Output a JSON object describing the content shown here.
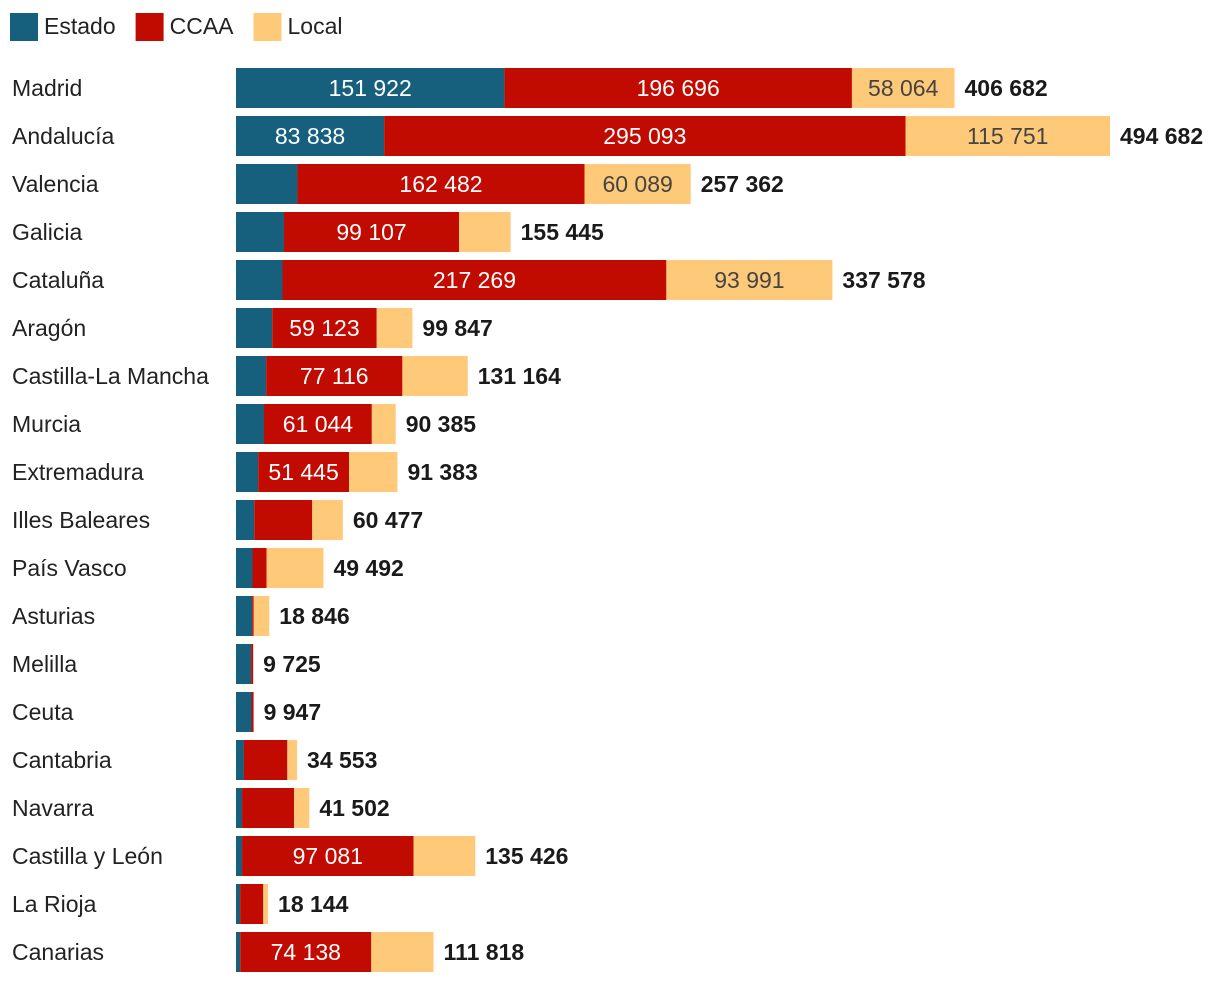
{
  "chart_data": {
    "type": "bar",
    "orientation": "horizontal",
    "stacked": true,
    "title": "",
    "xlabel": "",
    "ylabel": "",
    "xlim": [
      0,
      494682
    ],
    "grid": false,
    "legend_position": "top-left",
    "categories": [
      "Madrid",
      "Andalucía",
      "Valencia",
      "Galicia",
      "Cataluña",
      "Aragón",
      "Castilla-La Mancha",
      "Murcia",
      "Extremadura",
      "Illes Baleares",
      "País Vasco",
      "Asturias",
      "Melilla",
      "Ceuta",
      "Cantabria",
      "Navarra",
      "Castilla y León",
      "La Rioja",
      "Canarias"
    ],
    "series": [
      {
        "name": "Estado",
        "color": "#17607d",
        "label_color": "#ffffff",
        "values": [
          151922,
          83838,
          34791,
          27174,
          26318,
          20513,
          17054,
          15845,
          12533,
          10309,
          9344,
          9121,
          8549,
          8771,
          4499,
          3426,
          3422,
          2328,
          2425
        ],
        "labels": [
          "151 922",
          "83 838",
          "",
          "",
          "",
          "",
          "",
          "",
          "",
          "",
          "",
          "",
          "",
          "",
          "",
          "",
          "",
          "",
          ""
        ]
      },
      {
        "name": "CCAA",
        "color": "#c20b00",
        "label_color": "#ffffff",
        "values": [
          196696,
          295093,
          162482,
          99107,
          217269,
          59123,
          77116,
          61044,
          51445,
          32828,
          8000,
          904,
          1176,
          1176,
          24555,
          29400,
          97081,
          13116,
          74138
        ],
        "labels": [
          "196 696",
          "295 093",
          "162 482",
          "99 107",
          "217 269",
          "59 123",
          "77 116",
          "61 044",
          "51 445",
          "",
          "",
          "",
          "",
          "",
          "",
          "",
          "97 081",
          "",
          "74 138"
        ]
      },
      {
        "name": "Local",
        "color": "#fec979",
        "label_color": "#444444",
        "values": [
          58064,
          115751,
          60089,
          29164,
          93991,
          20211,
          36994,
          13496,
          27405,
          17340,
          32148,
          8821,
          0,
          0,
          5499,
          8676,
          34923,
          2700,
          35255
        ],
        "labels": [
          "58 064",
          "115 751",
          "60 089",
          "",
          "93 991",
          "",
          "",
          "",
          "",
          "",
          "",
          "",
          "",
          "",
          "",
          "",
          "",
          "",
          ""
        ]
      }
    ],
    "totals": [
      406682,
      494682,
      257362,
      155445,
      337578,
      99847,
      131164,
      90385,
      91383,
      60477,
      49492,
      18846,
      9725,
      9947,
      34553,
      41502,
      135426,
      18144,
      111818
    ],
    "total_labels": [
      "406 682",
      "494 682",
      "257 362",
      "155 445",
      "337 578",
      "99 847",
      "131 164",
      "90 385",
      "91 383",
      "60 477",
      "49 492",
      "18 846",
      "9 725",
      "9 947",
      "34 553",
      "41 502",
      "135 426",
      "18 144",
      "111 818"
    ]
  }
}
